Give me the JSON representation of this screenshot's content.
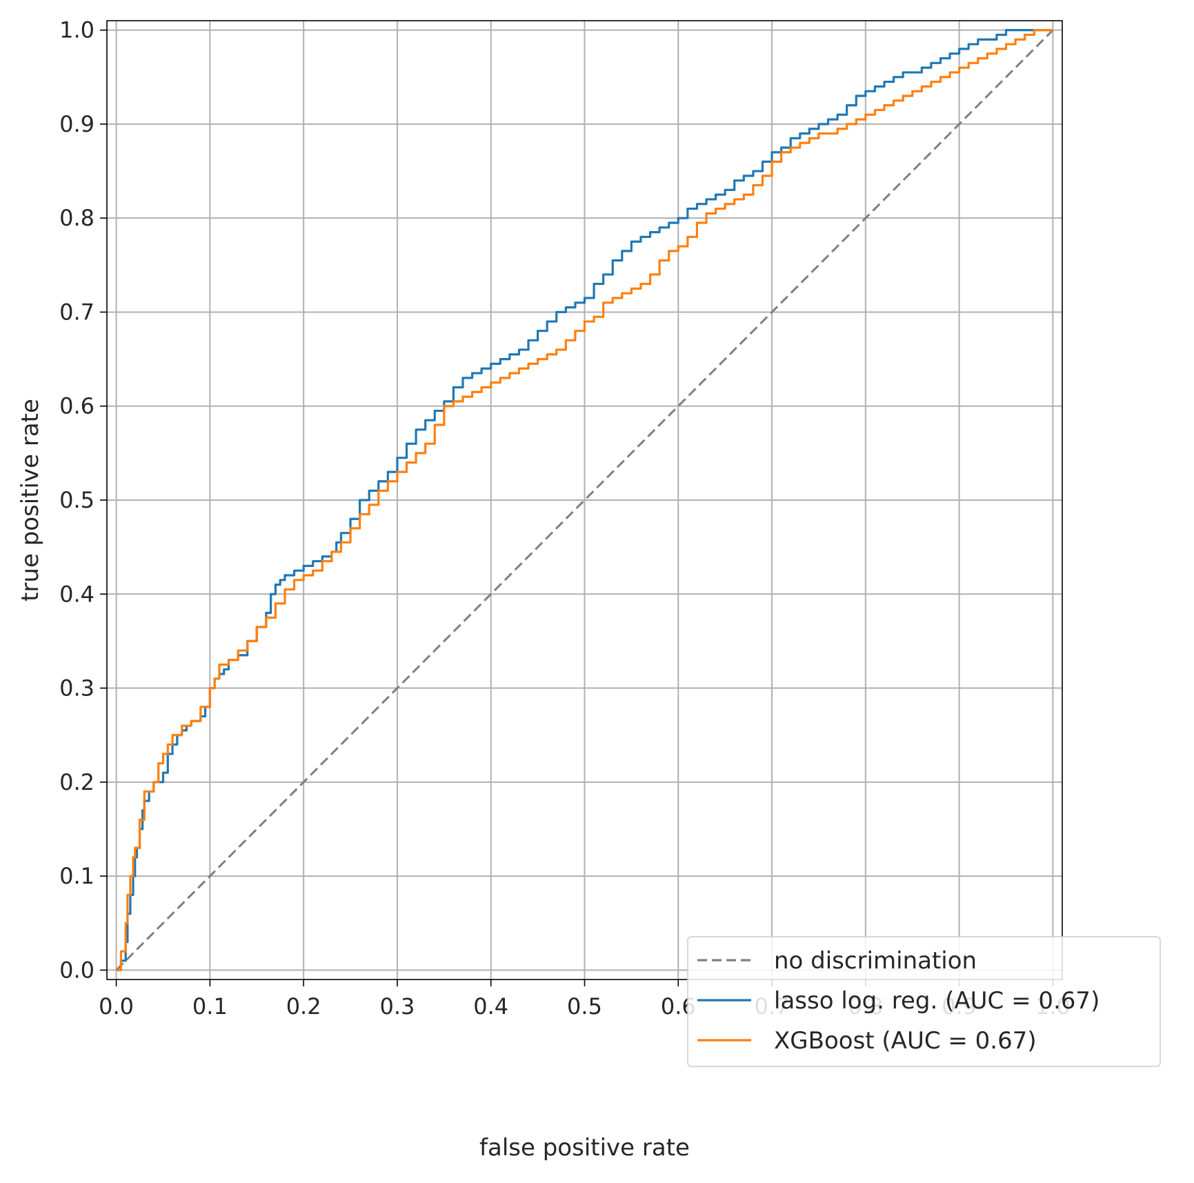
{
  "chart_data": {
    "type": "line",
    "title": "",
    "xlabel": "false positive rate",
    "ylabel": "true positive rate",
    "xlim": [
      -0.01,
      1.01
    ],
    "ylim": [
      -0.01,
      1.01
    ],
    "x_ticks": [
      "0.0",
      "0.1",
      "0.2",
      "0.3",
      "0.4",
      "0.5",
      "0.6",
      "0.7",
      "0.8",
      "0.9",
      "1.0"
    ],
    "y_ticks": [
      "0.0",
      "0.1",
      "0.2",
      "0.3",
      "0.4",
      "0.5",
      "0.6",
      "0.7",
      "0.8",
      "0.9",
      "1.0"
    ],
    "grid": true,
    "legend_position": "lower right",
    "series": [
      {
        "name": "no discrimination",
        "style": "dashed",
        "color": "#7f7f7f",
        "x": [
          0,
          1
        ],
        "y": [
          0,
          1
        ]
      },
      {
        "name": "lasso log. reg. (AUC = 0.67)",
        "style": "step",
        "color": "#1f77b4",
        "x": [
          0,
          0.005,
          0.01,
          0.012,
          0.015,
          0.018,
          0.02,
          0.022,
          0.025,
          0.028,
          0.03,
          0.035,
          0.04,
          0.045,
          0.05,
          0.055,
          0.06,
          0.065,
          0.07,
          0.075,
          0.08,
          0.09,
          0.095,
          0.1,
          0.105,
          0.11,
          0.115,
          0.12,
          0.13,
          0.14,
          0.15,
          0.16,
          0.165,
          0.17,
          0.175,
          0.18,
          0.19,
          0.2,
          0.21,
          0.22,
          0.23,
          0.235,
          0.24,
          0.25,
          0.26,
          0.27,
          0.28,
          0.29,
          0.3,
          0.31,
          0.32,
          0.33,
          0.34,
          0.35,
          0.36,
          0.37,
          0.38,
          0.39,
          0.4,
          0.41,
          0.42,
          0.43,
          0.44,
          0.45,
          0.46,
          0.47,
          0.48,
          0.49,
          0.5,
          0.51,
          0.52,
          0.53,
          0.54,
          0.55,
          0.56,
          0.57,
          0.58,
          0.59,
          0.6,
          0.61,
          0.62,
          0.63,
          0.64,
          0.65,
          0.66,
          0.67,
          0.68,
          0.69,
          0.7,
          0.71,
          0.72,
          0.73,
          0.74,
          0.75,
          0.76,
          0.77,
          0.78,
          0.79,
          0.8,
          0.81,
          0.82,
          0.83,
          0.84,
          0.85,
          0.86,
          0.87,
          0.88,
          0.89,
          0.9,
          0.91,
          0.92,
          0.93,
          0.94,
          0.95,
          0.96,
          0.97,
          0.98,
          0.99,
          1.0
        ],
        "y": [
          0,
          0.01,
          0.03,
          0.06,
          0.08,
          0.1,
          0.12,
          0.13,
          0.15,
          0.17,
          0.18,
          0.19,
          0.2,
          0.2,
          0.21,
          0.23,
          0.24,
          0.25,
          0.255,
          0.26,
          0.265,
          0.27,
          0.28,
          0.3,
          0.31,
          0.315,
          0.32,
          0.33,
          0.335,
          0.35,
          0.365,
          0.38,
          0.4,
          0.41,
          0.415,
          0.42,
          0.425,
          0.43,
          0.435,
          0.44,
          0.445,
          0.455,
          0.465,
          0.48,
          0.5,
          0.51,
          0.52,
          0.53,
          0.545,
          0.56,
          0.575,
          0.585,
          0.595,
          0.605,
          0.62,
          0.63,
          0.635,
          0.64,
          0.645,
          0.65,
          0.655,
          0.66,
          0.67,
          0.68,
          0.69,
          0.7,
          0.705,
          0.71,
          0.715,
          0.73,
          0.74,
          0.755,
          0.765,
          0.775,
          0.78,
          0.785,
          0.79,
          0.795,
          0.8,
          0.81,
          0.815,
          0.82,
          0.825,
          0.83,
          0.84,
          0.845,
          0.85,
          0.86,
          0.87,
          0.875,
          0.885,
          0.89,
          0.895,
          0.9,
          0.905,
          0.91,
          0.92,
          0.93,
          0.935,
          0.94,
          0.945,
          0.95,
          0.955,
          0.955,
          0.96,
          0.965,
          0.97,
          0.975,
          0.98,
          0.985,
          0.99,
          0.99,
          0.995,
          1.0,
          1.0,
          1.0,
          1.0,
          1.0,
          1.0
        ]
      },
      {
        "name": "XGBoost (AUC = 0.67)",
        "style": "step",
        "color": "#ff7f0e",
        "x": [
          0,
          0.005,
          0.01,
          0.012,
          0.015,
          0.018,
          0.02,
          0.025,
          0.03,
          0.04,
          0.045,
          0.05,
          0.055,
          0.06,
          0.07,
          0.08,
          0.09,
          0.1,
          0.105,
          0.11,
          0.12,
          0.13,
          0.14,
          0.15,
          0.16,
          0.17,
          0.18,
          0.19,
          0.2,
          0.21,
          0.22,
          0.23,
          0.24,
          0.25,
          0.26,
          0.27,
          0.28,
          0.29,
          0.3,
          0.31,
          0.32,
          0.33,
          0.34,
          0.35,
          0.36,
          0.37,
          0.38,
          0.39,
          0.4,
          0.41,
          0.42,
          0.43,
          0.44,
          0.45,
          0.46,
          0.47,
          0.48,
          0.49,
          0.5,
          0.51,
          0.52,
          0.53,
          0.54,
          0.55,
          0.56,
          0.57,
          0.58,
          0.59,
          0.6,
          0.61,
          0.62,
          0.63,
          0.64,
          0.65,
          0.66,
          0.67,
          0.68,
          0.69,
          0.7,
          0.71,
          0.72,
          0.73,
          0.74,
          0.75,
          0.76,
          0.77,
          0.78,
          0.79,
          0.8,
          0.81,
          0.82,
          0.83,
          0.84,
          0.85,
          0.86,
          0.87,
          0.88,
          0.89,
          0.9,
          0.91,
          0.92,
          0.93,
          0.94,
          0.95,
          0.96,
          0.97,
          0.98,
          0.99,
          1.0
        ],
        "y": [
          0,
          0.02,
          0.05,
          0.08,
          0.1,
          0.12,
          0.13,
          0.16,
          0.19,
          0.2,
          0.22,
          0.23,
          0.24,
          0.25,
          0.26,
          0.265,
          0.28,
          0.3,
          0.31,
          0.325,
          0.33,
          0.34,
          0.35,
          0.365,
          0.375,
          0.39,
          0.405,
          0.415,
          0.42,
          0.425,
          0.435,
          0.445,
          0.455,
          0.47,
          0.485,
          0.495,
          0.51,
          0.52,
          0.53,
          0.54,
          0.55,
          0.56,
          0.58,
          0.6,
          0.605,
          0.61,
          0.615,
          0.62,
          0.625,
          0.63,
          0.635,
          0.64,
          0.645,
          0.65,
          0.655,
          0.66,
          0.67,
          0.68,
          0.69,
          0.695,
          0.71,
          0.715,
          0.72,
          0.725,
          0.73,
          0.74,
          0.755,
          0.765,
          0.77,
          0.78,
          0.795,
          0.805,
          0.81,
          0.815,
          0.82,
          0.825,
          0.835,
          0.845,
          0.86,
          0.87,
          0.875,
          0.88,
          0.885,
          0.89,
          0.89,
          0.895,
          0.9,
          0.905,
          0.91,
          0.915,
          0.92,
          0.925,
          0.93,
          0.935,
          0.94,
          0.945,
          0.95,
          0.955,
          0.96,
          0.965,
          0.97,
          0.975,
          0.98,
          0.985,
          0.99,
          0.995,
          1.0,
          1.0,
          1.0
        ]
      }
    ]
  }
}
